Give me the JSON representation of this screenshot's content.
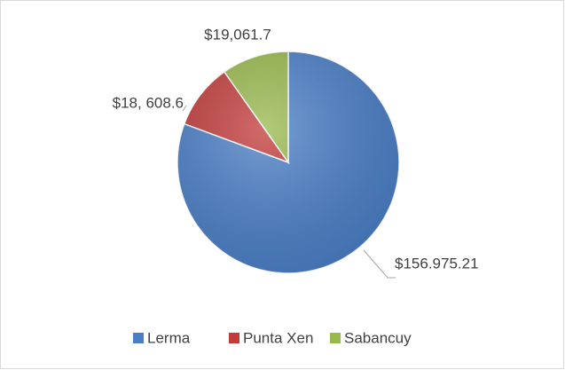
{
  "chart_data": {
    "type": "pie",
    "categories": [
      "Lerma",
      "Punta Xen",
      "Sabancuy"
    ],
    "values": [
      156975.21,
      18608.6,
      19061.7
    ],
    "value_labels": [
      "$156.975.21",
      "$18, 608.6",
      "$19,061.7"
    ],
    "colors": [
      "#4a7fc8",
      "#c23b3a",
      "#99b94c"
    ],
    "legend": "bottom"
  }
}
